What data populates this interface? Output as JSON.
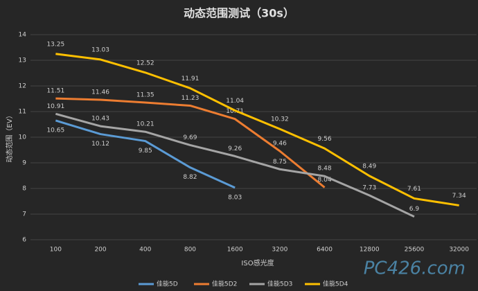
{
  "chart_data": {
    "type": "line",
    "title": "动态范围测试（30s）",
    "x_label": "ISO感光度",
    "y_label": "动态范围（EV）",
    "categories": [
      "100",
      "200",
      "400",
      "800",
      "1600",
      "3200",
      "6400",
      "12800",
      "25600",
      "32000"
    ],
    "series": [
      {
        "name": "佳能5D",
        "color": "#5b9bd5",
        "values": [
          10.65,
          10.12,
          9.85,
          8.82,
          8.03,
          null,
          null,
          null,
          null,
          null
        ]
      },
      {
        "name": "佳能5D2",
        "color": "#ed7d31",
        "values": [
          11.51,
          11.46,
          11.35,
          11.23,
          10.71,
          9.46,
          8.04,
          null,
          null,
          null
        ]
      },
      {
        "name": "佳能5D3",
        "color": "#a5a5a5",
        "values": [
          10.91,
          10.43,
          10.21,
          9.69,
          9.26,
          8.75,
          8.48,
          7.73,
          6.9,
          null
        ]
      },
      {
        "name": "佳能5D4",
        "color": "#ffc000",
        "values": [
          13.25,
          13.03,
          12.52,
          11.91,
          11.04,
          10.32,
          9.56,
          8.49,
          7.61,
          7.34
        ]
      }
    ],
    "ylim": [
      6,
      14
    ],
    "yticks": [
      6,
      7,
      8,
      9,
      10,
      11,
      12,
      13,
      14
    ],
    "grid": true,
    "legend": "bottom",
    "watermark": "PC426.com"
  }
}
